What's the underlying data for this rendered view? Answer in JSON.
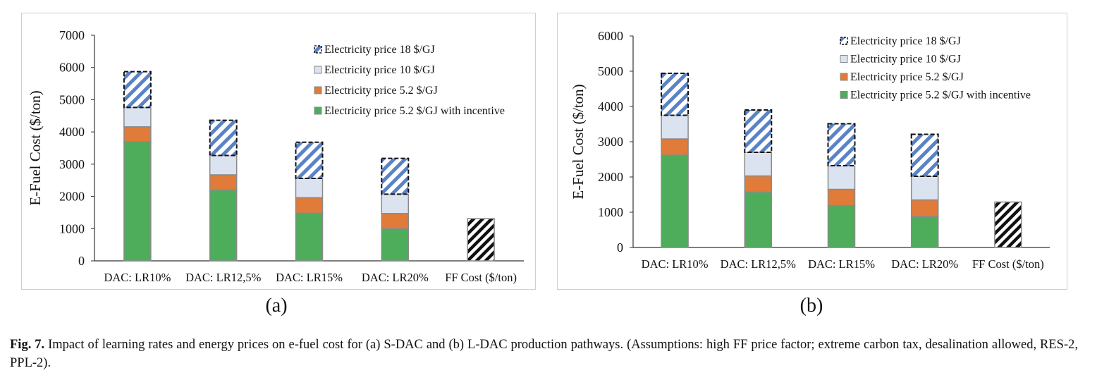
{
  "figure": {
    "caption_label": "Fig. 7.",
    "caption_text": "Impact of learning rates and energy prices on e-fuel cost for (a) S-DAC and (b) L-DAC production pathways. (Assumptions: high FF price factor; extreme carbon tax, desalination allowed, RES-2, PPL-2).",
    "panel_a_label": "(a)",
    "panel_b_label": "(b)"
  },
  "colors": {
    "incentive": "#4ead5b",
    "price52": "#e07b39",
    "price10": "#dbe3f1",
    "price18_hatch": "#5a83c6",
    "ff_hatch": "#111111",
    "bar_edge": "#8a8a8a"
  },
  "chart_data": [
    {
      "type": "bar",
      "stacked": true,
      "title": "",
      "xlabel": "",
      "ylabel": "E-Fuel Cost ($/ton)",
      "ylim": [
        0,
        7000
      ],
      "yticks": [
        0,
        1000,
        2000,
        3000,
        4000,
        5000,
        6000,
        7000
      ],
      "legend_position": "top-right",
      "categories": [
        "DAC: LR10%",
        "DAC: LR12,5%",
        "DAC: LR15%",
        "DAC: LR20%",
        "FF Cost ($/ton)"
      ],
      "series": [
        {
          "name": "Electricity price 5.2 $/GJ with incentive",
          "values": [
            3700,
            2200,
            1480,
            1000,
            null
          ]
        },
        {
          "name": "Electricity price 5.2 $/GJ",
          "values": [
            460,
            470,
            480,
            470,
            null
          ]
        },
        {
          "name": "Electricity price 10 $/GJ",
          "values": [
            600,
            600,
            600,
            600,
            null
          ]
        },
        {
          "name": "Electricity price 18 $/GJ",
          "values": [
            1110,
            1090,
            1120,
            1110,
            null
          ]
        },
        {
          "name": "FF Cost ($/ton)",
          "values": [
            null,
            null,
            null,
            null,
            1310
          ]
        }
      ]
    },
    {
      "type": "bar",
      "stacked": true,
      "title": "",
      "xlabel": "",
      "ylabel": "E-Fuel Cost ($/ton)",
      "ylim": [
        0,
        6000
      ],
      "yticks": [
        0,
        1000,
        2000,
        3000,
        4000,
        5000,
        6000
      ],
      "legend_position": "top-right",
      "categories": [
        "DAC: LR10%",
        "DAC: LR12,5%",
        "DAC: LR15%",
        "DAC: LR20%",
        "FF Cost ($/ton)"
      ],
      "series": [
        {
          "name": "Electricity price 5.2 $/GJ with incentive",
          "values": [
            2620,
            1570,
            1190,
            880,
            null
          ]
        },
        {
          "name": "Electricity price 5.2 $/GJ",
          "values": [
            460,
            460,
            460,
            470,
            null
          ]
        },
        {
          "name": "Electricity price 10 $/GJ",
          "values": [
            670,
            670,
            670,
            670,
            null
          ]
        },
        {
          "name": "Electricity price 18 $/GJ",
          "values": [
            1190,
            1200,
            1190,
            1190,
            null
          ]
        },
        {
          "name": "FF Cost ($/ton)",
          "values": [
            null,
            null,
            null,
            null,
            1290
          ]
        }
      ]
    }
  ]
}
